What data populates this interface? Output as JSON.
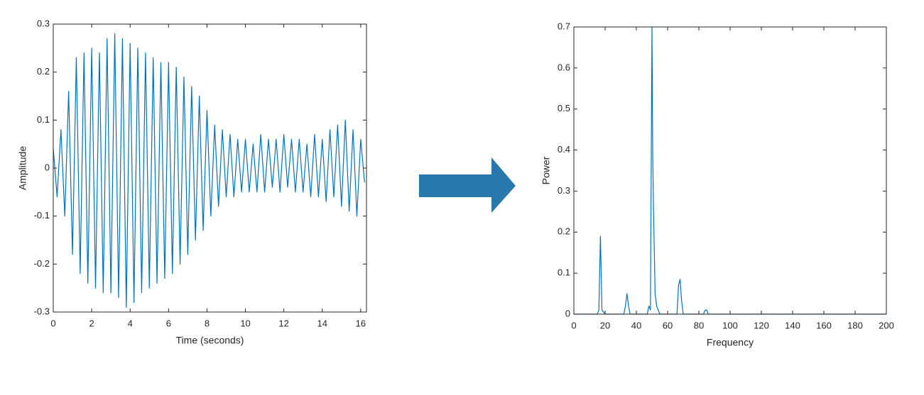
{
  "chart_data": [
    {
      "type": "line",
      "xlabel": "Time (seconds)",
      "ylabel": "Amplitude",
      "color": "#0072bd",
      "x": [
        0,
        0.2,
        0.4,
        0.6,
        0.8,
        1.0,
        1.2,
        1.4,
        1.6,
        1.8,
        2.0,
        2.2,
        2.4,
        2.6,
        2.8,
        3.0,
        3.2,
        3.4,
        3.6,
        3.8,
        4.0,
        4.2,
        4.4,
        4.6,
        4.8,
        5.0,
        5.2,
        5.4,
        5.6,
        5.8,
        6.0,
        6.2,
        6.4,
        6.6,
        6.8,
        7.0,
        7.2,
        7.4,
        7.6,
        7.8,
        8.0,
        8.2,
        8.4,
        8.6,
        8.8,
        9.0,
        9.2,
        9.4,
        9.6,
        9.8,
        10.0,
        10.2,
        10.4,
        10.6,
        10.8,
        11.0,
        11.2,
        11.4,
        11.6,
        11.8,
        12.0,
        12.2,
        12.4,
        12.6,
        12.8,
        13.0,
        13.2,
        13.4,
        13.6,
        13.8,
        14.0,
        14.2,
        14.4,
        14.6,
        14.8,
        15.0,
        15.2,
        15.4,
        15.6,
        15.8,
        16.0,
        16.2
      ],
      "values": [
        0.04,
        -0.06,
        0.08,
        -0.1,
        0.16,
        -0.18,
        0.23,
        -0.22,
        0.24,
        -0.24,
        0.25,
        -0.25,
        0.24,
        -0.26,
        0.27,
        -0.26,
        0.28,
        -0.27,
        0.27,
        -0.29,
        0.26,
        -0.28,
        0.25,
        -0.26,
        0.24,
        -0.25,
        0.23,
        -0.24,
        0.22,
        -0.23,
        0.22,
        -0.22,
        0.21,
        -0.2,
        0.19,
        -0.18,
        0.17,
        -0.15,
        0.15,
        -0.13,
        0.12,
        -0.1,
        0.09,
        -0.08,
        0.08,
        -0.06,
        0.07,
        -0.06,
        0.06,
        -0.05,
        0.06,
        -0.05,
        0.05,
        -0.05,
        0.07,
        -0.05,
        0.06,
        -0.04,
        0.06,
        -0.05,
        0.07,
        -0.04,
        0.06,
        -0.05,
        0.06,
        -0.05,
        0.05,
        -0.06,
        0.07,
        -0.06,
        0.06,
        -0.07,
        0.08,
        -0.06,
        0.09,
        -0.08,
        0.1,
        -0.09,
        0.08,
        -0.1,
        0.06,
        -0.03
      ],
      "xlim": [
        0,
        16.3
      ],
      "xticks": [
        0,
        2,
        4,
        6,
        8,
        10,
        12,
        14,
        16
      ],
      "ylim": [
        -0.3,
        0.3
      ],
      "yticks": [
        -0.3,
        -0.2,
        -0.1,
        0,
        0.1,
        0.2,
        0.3
      ]
    },
    {
      "type": "line",
      "xlabel": "Frequency",
      "ylabel": "Power",
      "color": "#0072bd",
      "x": [
        0,
        15,
        16,
        17,
        17.5,
        18,
        20,
        32,
        33,
        34,
        35,
        36,
        47,
        48,
        49,
        50,
        50.5,
        51,
        52,
        53,
        55,
        66,
        67,
        68,
        69,
        70,
        83,
        84,
        85,
        86,
        200
      ],
      "values": [
        0,
        0,
        0.01,
        0.19,
        0.1,
        0.01,
        0,
        0,
        0.02,
        0.05,
        0.02,
        0,
        0,
        0.02,
        0.01,
        0.7,
        0.38,
        0.25,
        0.05,
        0.02,
        0,
        0,
        0.07,
        0.085,
        0.03,
        0,
        0,
        0.01,
        0.01,
        0,
        0
      ],
      "xlim": [
        0,
        200
      ],
      "xticks": [
        0,
        20,
        40,
        60,
        80,
        100,
        120,
        140,
        160,
        180,
        200
      ],
      "ylim": [
        0,
        0.7
      ],
      "yticks": [
        0,
        0.1,
        0.2,
        0.3,
        0.4,
        0.5,
        0.6,
        0.7
      ]
    }
  ]
}
